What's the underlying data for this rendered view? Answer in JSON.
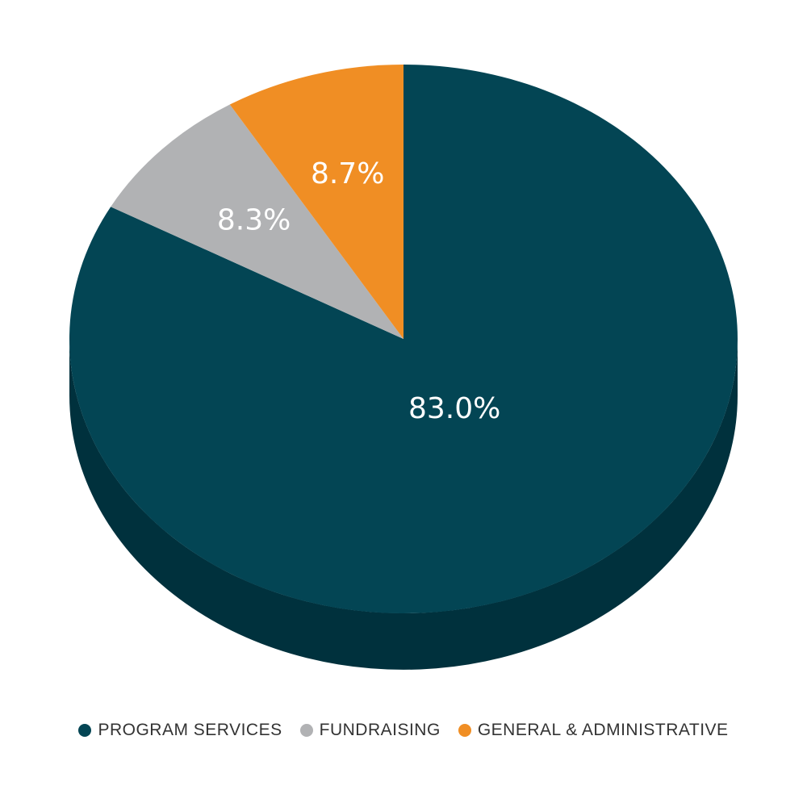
{
  "chart_data": {
    "type": "pie",
    "style": "3d",
    "categories": [
      "PROGRAM SERVICES",
      "FUNDRAISING",
      "GENERAL & ADMINISTRATIVE"
    ],
    "values": [
      83.0,
      8.3,
      8.7
    ],
    "value_labels": [
      "83.0%",
      "8.3%",
      "8.7%"
    ],
    "colors": [
      "#034554",
      "#b1b2b4",
      "#f08e24"
    ],
    "side_colors": [
      "#00313d",
      "#8a8b8d",
      "#c06e10"
    ],
    "start_angle": "top, clockwise",
    "legend_position": "bottom"
  }
}
